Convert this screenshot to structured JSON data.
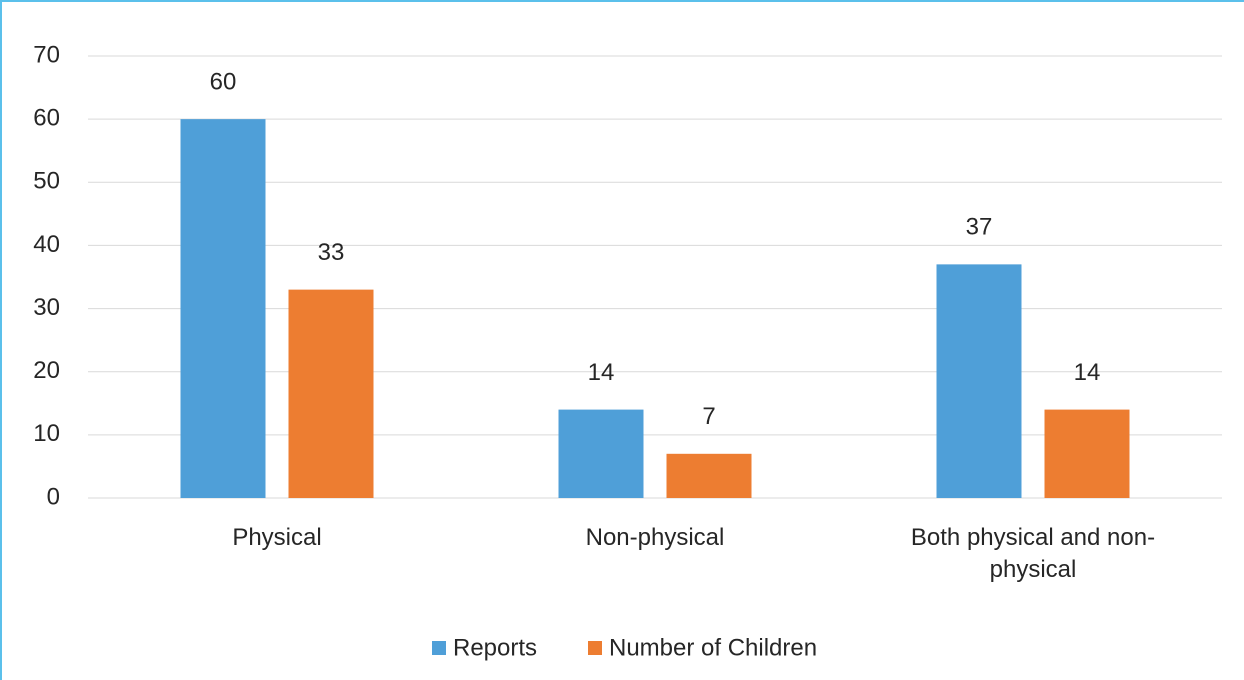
{
  "chart_data": {
    "type": "bar",
    "categories": [
      "Physical",
      "Non-physical",
      "Both physical and non-physical"
    ],
    "series": [
      {
        "name": "Reports",
        "color": "#4f9fd8",
        "values": [
          60,
          14,
          37
        ]
      },
      {
        "name": "Number of Children",
        "color": "#ed7d31",
        "values": [
          33,
          7,
          14
        ]
      }
    ],
    "ylim": [
      0,
      70
    ],
    "yticks": [
      0,
      10,
      20,
      30,
      40,
      50,
      60,
      70
    ],
    "grid": true,
    "legend": "bottom"
  }
}
